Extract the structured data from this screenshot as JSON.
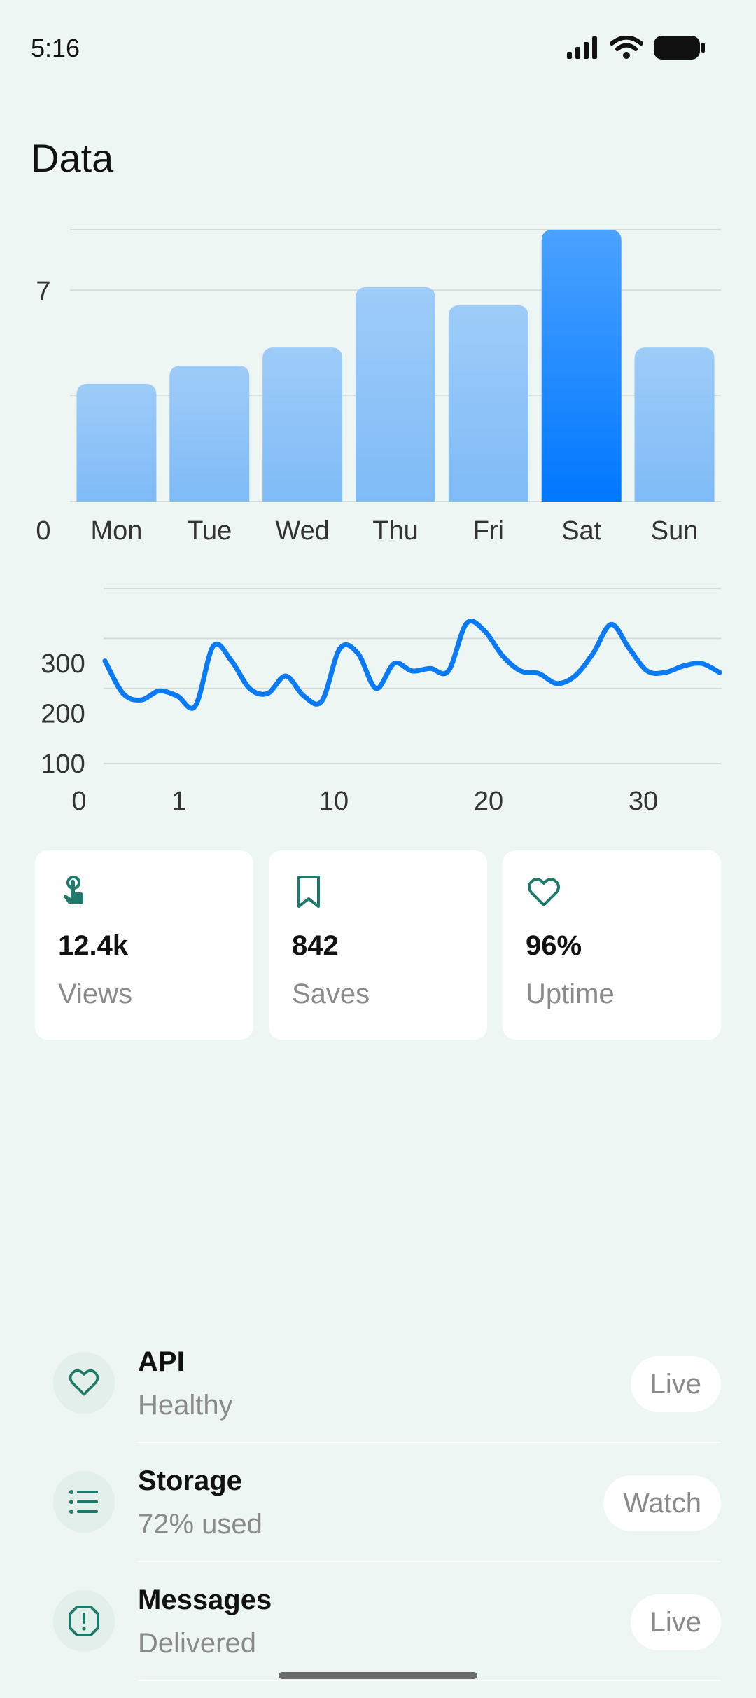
{
  "status_bar": {
    "time": "5:16",
    "icons": [
      "signal-icon",
      "wifi-icon",
      "battery-icon"
    ]
  },
  "page": {
    "title": "Data"
  },
  "colors": {
    "background": "#EDF6F2",
    "accent": "#0A7BF5",
    "bar_light": "#8EC2F7",
    "bar_highlight": "#0077FF",
    "icon_green": "#1F7A6B",
    "muted_text": "#8A8A8A"
  },
  "chart_data": [
    {
      "type": "bar",
      "categories": [
        "Mon",
        "Tue",
        "Wed",
        "Thu",
        "Fri",
        "Sat",
        "Sun"
      ],
      "values": [
        3.9,
        4.5,
        5.1,
        7.1,
        6.5,
        9.0,
        5.1
      ],
      "highlighted_category": "Sat",
      "ylim": [
        0,
        9
      ],
      "yticks": [
        0,
        7
      ],
      "grid": true,
      "title": "",
      "xlabel": "",
      "ylabel": ""
    },
    {
      "type": "line",
      "x": [
        0,
        1,
        2,
        3,
        4,
        5,
        6,
        7,
        8,
        9,
        10,
        11,
        12,
        13,
        14,
        15,
        16,
        17,
        18,
        19,
        20,
        21,
        22,
        23,
        24,
        25,
        26,
        27,
        28,
        29,
        30,
        31,
        32,
        33,
        34
      ],
      "series": [
        {
          "values": [
            305,
            240,
            227,
            245,
            235,
            215,
            335,
            305,
            250,
            240,
            275,
            235,
            225,
            330,
            320,
            250,
            300,
            285,
            290,
            285,
            380,
            365,
            315,
            285,
            280,
            260,
            275,
            320,
            378,
            330,
            285,
            282,
            295,
            300,
            282
          ]
        }
      ],
      "xticks": [
        0,
        1,
        10,
        20,
        30
      ],
      "yticks": [
        100,
        200,
        300
      ],
      "ylim": [
        100,
        450
      ],
      "grid": true,
      "title": "",
      "xlabel": "",
      "ylabel": ""
    }
  ],
  "stats": [
    {
      "icon": "touch-icon",
      "value": "12.4k",
      "label": "Views"
    },
    {
      "icon": "bookmark-icon",
      "value": "842",
      "label": "Saves"
    },
    {
      "icon": "heart-icon",
      "value": "96%",
      "label": "Uptime"
    }
  ],
  "services": [
    {
      "icon": "heart-icon",
      "title": "API",
      "subtitle": "Healthy",
      "status": "Live"
    },
    {
      "icon": "list-icon",
      "title": "Storage",
      "subtitle": "72% used",
      "status": "Watch"
    },
    {
      "icon": "alert-icon",
      "title": "Messages",
      "subtitle": "Delivered",
      "status": "Live"
    }
  ]
}
